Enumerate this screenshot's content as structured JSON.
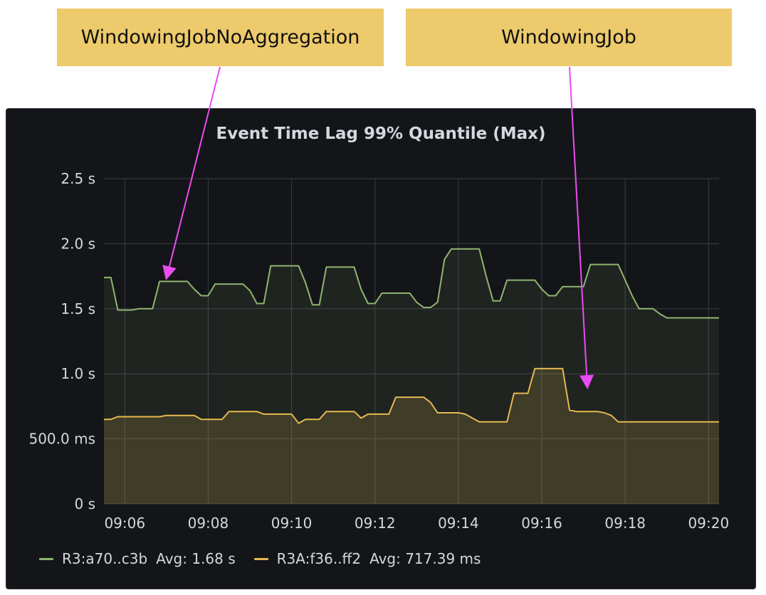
{
  "callouts": {
    "left": "WindowingJobNoAggregation",
    "right": "WindowingJob"
  },
  "colors": {
    "series_green": "#8fb56f",
    "series_yellow": "#e5b94f",
    "annotation": "#e94cf0",
    "callout_bg": "#edca6b",
    "panel_bg": "#141519"
  },
  "chart_data": {
    "type": "area",
    "title": "Event Time Lag 99% Quantile (Max)",
    "xlabel": "",
    "ylabel": "",
    "x_ticks": [
      "09:06",
      "09:08",
      "09:10",
      "09:12",
      "09:14",
      "09:16",
      "09:18",
      "09:20"
    ],
    "y_ticks": [
      "0 s",
      "500.0 ms",
      "1.0 s",
      "1.5 s",
      "2.0 s",
      "2.5 s"
    ],
    "y_tick_values": [
      0,
      0.5,
      1.0,
      1.5,
      2.0,
      2.5
    ],
    "ylim": [
      0,
      2.5
    ],
    "x_unit": "minutes",
    "xlim": [
      "09:05:30",
      "09:20:15"
    ],
    "grid": true,
    "legend_position": "bottom-left",
    "series": [
      {
        "name": "R3:a70..c3b",
        "avg_label": "Avg: 1.68 s",
        "color": "#8fb56f",
        "x": [
          "09:05:30",
          "09:05:40",
          "09:05:50",
          "09:06:00",
          "09:06:10",
          "09:06:20",
          "09:06:30",
          "09:06:40",
          "09:06:50",
          "09:07:00",
          "09:07:10",
          "09:07:20",
          "09:07:30",
          "09:07:40",
          "09:07:50",
          "09:08:00",
          "09:08:10",
          "09:08:20",
          "09:08:30",
          "09:08:40",
          "09:08:50",
          "09:09:00",
          "09:09:10",
          "09:09:20",
          "09:09:30",
          "09:09:40",
          "09:09:50",
          "09:10:00",
          "09:10:10",
          "09:10:20",
          "09:10:30",
          "09:10:40",
          "09:10:50",
          "09:11:00",
          "09:11:10",
          "09:11:20",
          "09:11:30",
          "09:11:40",
          "09:11:50",
          "09:12:00",
          "09:12:10",
          "09:12:20",
          "09:12:30",
          "09:12:40",
          "09:12:50",
          "09:13:00",
          "09:13:10",
          "09:13:20",
          "09:13:30",
          "09:13:40",
          "09:13:50",
          "09:14:00",
          "09:14:10",
          "09:14:20",
          "09:14:30",
          "09:14:40",
          "09:14:50",
          "09:15:00",
          "09:15:10",
          "09:15:20",
          "09:15:30",
          "09:15:40",
          "09:15:50",
          "09:16:00",
          "09:16:10",
          "09:16:20",
          "09:16:30",
          "09:16:40",
          "09:16:50",
          "09:17:00",
          "09:17:10",
          "09:17:20",
          "09:17:30",
          "09:17:40",
          "09:17:50",
          "09:18:00",
          "09:18:10",
          "09:18:20",
          "09:18:30",
          "09:18:40",
          "09:18:50",
          "09:19:00",
          "09:19:10",
          "09:19:20",
          "09:19:30",
          "09:19:40",
          "09:19:50",
          "09:20:00",
          "09:20:10",
          "09:20:15"
        ],
        "values": [
          1.74,
          1.74,
          1.49,
          1.49,
          1.49,
          1.5,
          1.5,
          1.5,
          1.71,
          1.71,
          1.71,
          1.71,
          1.71,
          1.65,
          1.6,
          1.6,
          1.69,
          1.69,
          1.69,
          1.69,
          1.69,
          1.64,
          1.54,
          1.54,
          1.83,
          1.83,
          1.83,
          1.83,
          1.83,
          1.7,
          1.53,
          1.53,
          1.82,
          1.82,
          1.82,
          1.82,
          1.82,
          1.65,
          1.54,
          1.54,
          1.62,
          1.62,
          1.62,
          1.62,
          1.62,
          1.55,
          1.51,
          1.51,
          1.55,
          1.88,
          1.96,
          1.96,
          1.96,
          1.96,
          1.96,
          1.75,
          1.56,
          1.56,
          1.72,
          1.72,
          1.72,
          1.72,
          1.72,
          1.65,
          1.6,
          1.6,
          1.67,
          1.67,
          1.67,
          1.67,
          1.84,
          1.84,
          1.84,
          1.84,
          1.84,
          1.72,
          1.6,
          1.5,
          1.5,
          1.5,
          1.46,
          1.43,
          1.43,
          1.43,
          1.43,
          1.43,
          1.43,
          1.43,
          1.43,
          1.43
        ]
      },
      {
        "name": "R3A:f36..ff2",
        "avg_label": "Avg: 717.39 ms",
        "color": "#e5b94f",
        "x": [
          "09:05:30",
          "09:05:40",
          "09:05:50",
          "09:06:00",
          "09:06:10",
          "09:06:20",
          "09:06:30",
          "09:06:40",
          "09:06:50",
          "09:07:00",
          "09:07:10",
          "09:07:20",
          "09:07:30",
          "09:07:40",
          "09:07:50",
          "09:08:00",
          "09:08:10",
          "09:08:20",
          "09:08:30",
          "09:08:40",
          "09:08:50",
          "09:09:00",
          "09:09:10",
          "09:09:20",
          "09:09:30",
          "09:09:40",
          "09:09:50",
          "09:10:00",
          "09:10:10",
          "09:10:20",
          "09:10:30",
          "09:10:40",
          "09:10:50",
          "09:11:00",
          "09:11:10",
          "09:11:20",
          "09:11:30",
          "09:11:40",
          "09:11:50",
          "09:12:00",
          "09:12:10",
          "09:12:20",
          "09:12:30",
          "09:12:40",
          "09:12:50",
          "09:13:00",
          "09:13:10",
          "09:13:20",
          "09:13:30",
          "09:13:40",
          "09:13:50",
          "09:14:00",
          "09:14:10",
          "09:14:20",
          "09:14:30",
          "09:14:40",
          "09:14:50",
          "09:15:00",
          "09:15:10",
          "09:15:20",
          "09:15:30",
          "09:15:40",
          "09:15:50",
          "09:16:00",
          "09:16:10",
          "09:16:20",
          "09:16:30",
          "09:16:40",
          "09:16:50",
          "09:17:00",
          "09:17:10",
          "09:17:20",
          "09:17:30",
          "09:17:40",
          "09:17:50",
          "09:18:00",
          "09:18:10",
          "09:18:20",
          "09:18:30",
          "09:18:40",
          "09:18:50",
          "09:19:00",
          "09:19:10",
          "09:19:20",
          "09:19:30",
          "09:19:40",
          "09:19:50",
          "09:20:00",
          "09:20:10",
          "09:20:15"
        ],
        "values": [
          0.65,
          0.65,
          0.67,
          0.67,
          0.67,
          0.67,
          0.67,
          0.67,
          0.67,
          0.68,
          0.68,
          0.68,
          0.68,
          0.68,
          0.65,
          0.65,
          0.65,
          0.65,
          0.71,
          0.71,
          0.71,
          0.71,
          0.71,
          0.69,
          0.69,
          0.69,
          0.69,
          0.69,
          0.62,
          0.65,
          0.65,
          0.65,
          0.71,
          0.71,
          0.71,
          0.71,
          0.71,
          0.66,
          0.69,
          0.69,
          0.69,
          0.69,
          0.82,
          0.82,
          0.82,
          0.82,
          0.82,
          0.78,
          0.7,
          0.7,
          0.7,
          0.7,
          0.69,
          0.66,
          0.63,
          0.63,
          0.63,
          0.63,
          0.63,
          0.85,
          0.85,
          0.85,
          1.04,
          1.04,
          1.04,
          1.04,
          1.04,
          0.72,
          0.71,
          0.71,
          0.71,
          0.71,
          0.7,
          0.68,
          0.63,
          0.63,
          0.63,
          0.63,
          0.63,
          0.63,
          0.63,
          0.63,
          0.63,
          0.63,
          0.63,
          0.63,
          0.63,
          0.63,
          0.63,
          0.63
        ]
      }
    ]
  }
}
